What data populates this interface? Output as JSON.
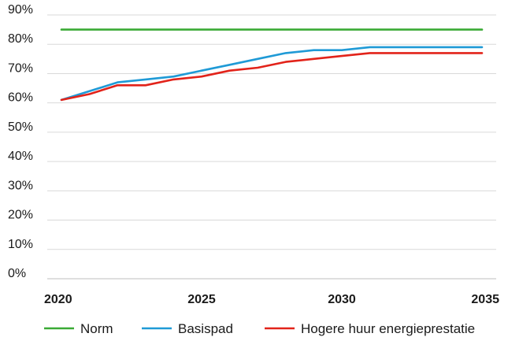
{
  "chart_data": {
    "type": "line",
    "x": [
      2020,
      2021,
      2022,
      2023,
      2024,
      2025,
      2026,
      2027,
      2028,
      2029,
      2030,
      2031,
      2032,
      2033,
      2034,
      2035
    ],
    "series": [
      {
        "name": "Norm",
        "color": "#3aaa35",
        "values": [
          85,
          85,
          85,
          85,
          85,
          85,
          85,
          85,
          85,
          85,
          85,
          85,
          85,
          85,
          85,
          85
        ]
      },
      {
        "name": "Basispad",
        "color": "#1f9ad6",
        "values": [
          61,
          64,
          67,
          68,
          69,
          71,
          73,
          75,
          77,
          78,
          78,
          79,
          79,
          79,
          79,
          79
        ]
      },
      {
        "name": "Hogere huur energieprestatie",
        "color": "#e2231a",
        "values": [
          61,
          63,
          66,
          66,
          68,
          69,
          71,
          72,
          74,
          75,
          76,
          77,
          77,
          77,
          77,
          77
        ]
      }
    ],
    "xlim": [
      2020,
      2035
    ],
    "ylim": [
      0,
      90
    ],
    "y_ticks": [
      0,
      10,
      20,
      30,
      40,
      50,
      60,
      70,
      80,
      90
    ],
    "y_tick_labels": [
      "0%",
      "10%",
      "20%",
      "30%",
      "40%",
      "50%",
      "60%",
      "70%",
      "80%",
      "90%"
    ],
    "x_ticks": [
      2020,
      2025,
      2030,
      2035
    ],
    "x_tick_labels": [
      "2020",
      "2025",
      "2030",
      "2035"
    ],
    "grid": "horizontal",
    "grid_color": "#d9d9d9",
    "legend_position": "bottom",
    "title": "",
    "xlabel": "",
    "ylabel": ""
  }
}
